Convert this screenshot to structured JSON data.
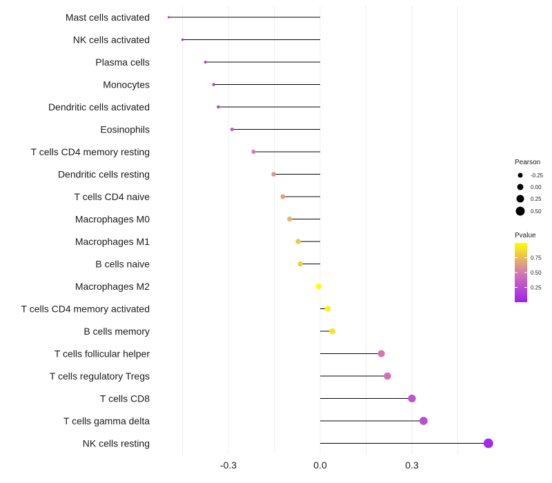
{
  "chart_data": {
    "type": "lollipop",
    "title": "",
    "xlabel": "",
    "ylabel": "",
    "xlim": [
      -0.5,
      0.56
    ],
    "x_ticks": [
      -0.3,
      0.0,
      0.3
    ],
    "x_tick_labels": [
      "-0.3",
      "0.0",
      "0.3"
    ],
    "grid": true,
    "categories": [
      "Mast cells activated",
      "NK cells activated",
      "Plasma cells",
      "Monocytes",
      "Dendritic cells activated",
      "Eosinophils",
      "T cells CD4 memory resting",
      "Dendritic cells resting",
      "T cells CD4 naive",
      "Macrophages M0",
      "Macrophages M1",
      "B cells naive",
      "Macrophages M2",
      "T cells CD4 memory activated",
      "B cells memory",
      "T cells follicular helper",
      "T cells regulatory  Tregs ",
      "T cells CD8",
      "T cells gamma delta",
      "NK cells resting"
    ],
    "pearson": [
      -0.495,
      -0.45,
      -0.375,
      -0.348,
      -0.333,
      -0.288,
      -0.218,
      -0.152,
      -0.122,
      -0.1,
      -0.072,
      -0.065,
      -0.005,
      0.025,
      0.04,
      0.2,
      0.22,
      0.3,
      0.338,
      0.55
    ],
    "pvalue": [
      0.05,
      0.08,
      0.2,
      0.2,
      0.25,
      0.35,
      0.5,
      0.6,
      0.65,
      0.72,
      0.8,
      0.82,
      1.0,
      0.95,
      0.9,
      0.5,
      0.45,
      0.3,
      0.25,
      0.05
    ],
    "legend": {
      "size_title": "Pearson",
      "size_labels": [
        "-0.25",
        "0.00",
        "0.25",
        "0.50"
      ],
      "size_values": [
        -0.25,
        0.0,
        0.25,
        0.5
      ],
      "color_title": "Pvalue",
      "color_labels": [
        "0.75",
        "0.50",
        "0.25"
      ],
      "color_values": [
        0.75,
        0.5,
        0.25
      ],
      "color_range": [
        0.0,
        1.0
      ],
      "position": "right"
    },
    "colors": {
      "low": "#a020f0",
      "mid": "#d479b0",
      "high": "#ffff00",
      "stem": "#000000",
      "grid": "#ebebeb"
    }
  }
}
